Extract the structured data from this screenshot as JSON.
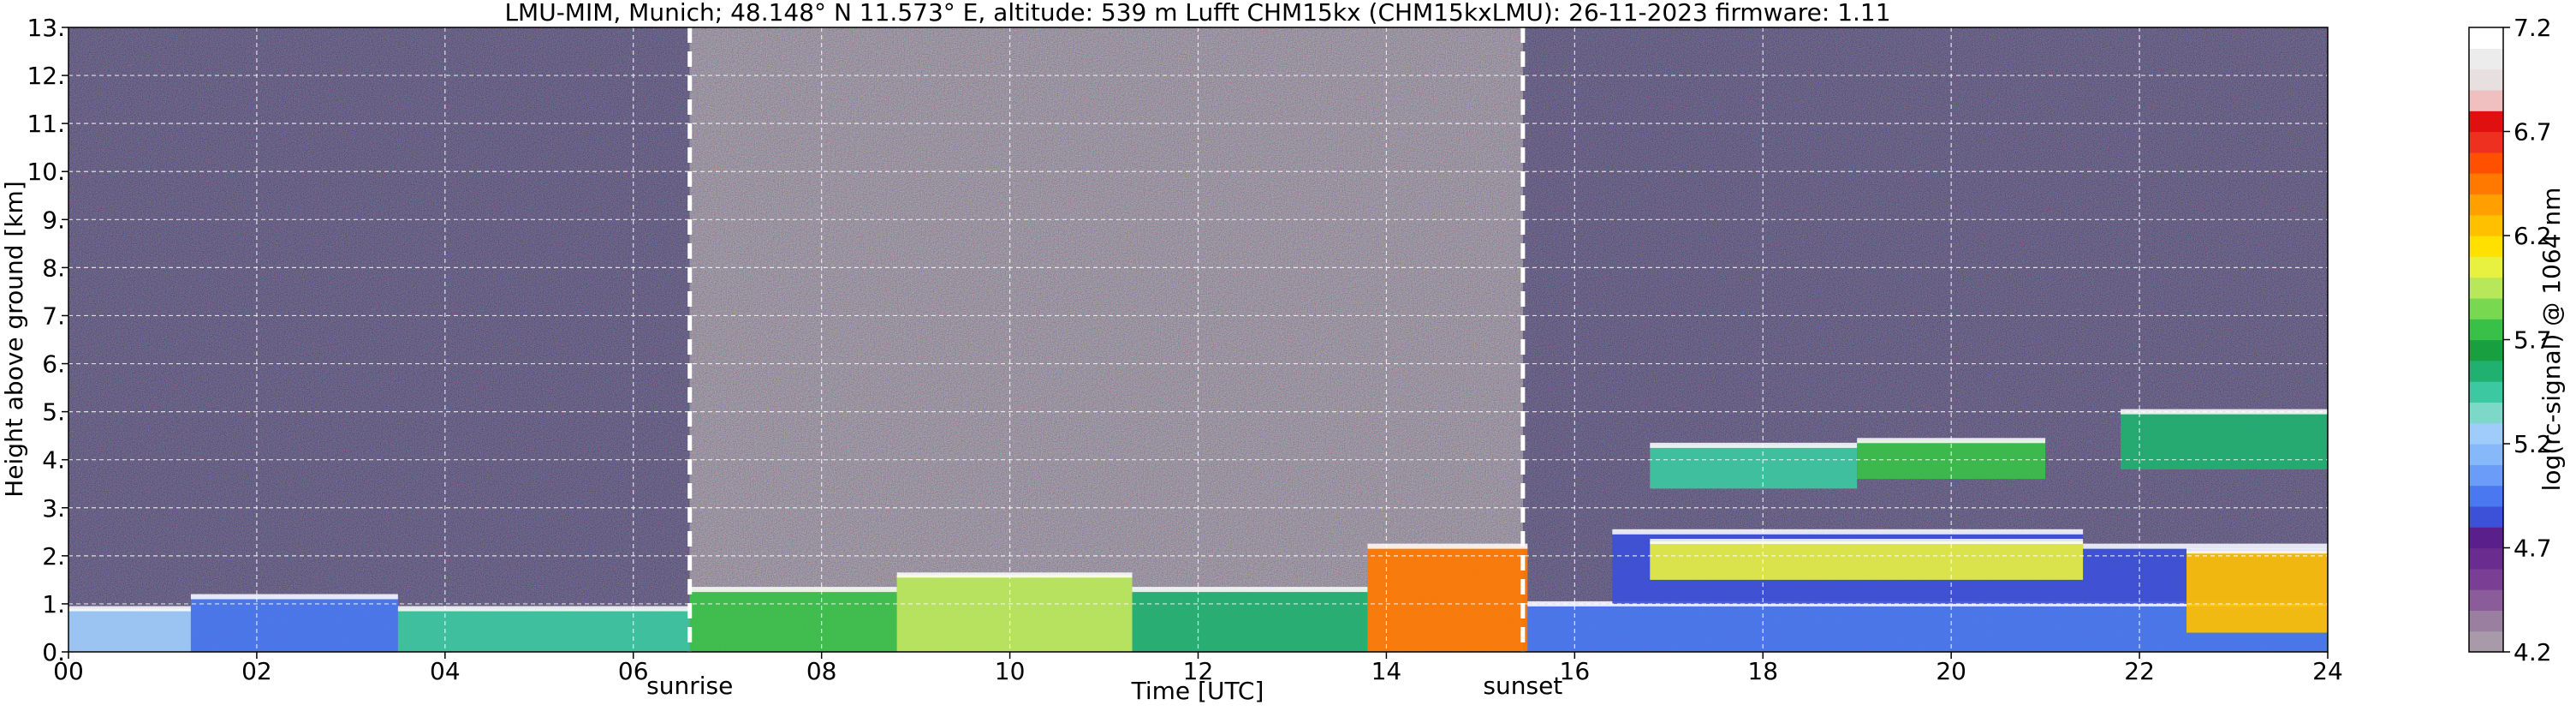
{
  "chart_data": {
    "type": "heatmap",
    "title": "LMU-MIM, Munich; 48.148° N 11.573° E, altitude: 539 m    Lufft CHM15kx (CHM15kxLMU): 26-11-2023    firmware: 1.11",
    "xlabel": "Time [UTC]",
    "ylabel": "Height above ground [km]",
    "xlim": [
      0,
      24
    ],
    "ylim": [
      0,
      13
    ],
    "x_ticks": [
      "00",
      "02",
      "04",
      "06",
      "08",
      "10",
      "12",
      "14",
      "16",
      "18",
      "20",
      "22",
      "24"
    ],
    "x_tick_values": [
      0,
      2,
      4,
      6,
      8,
      10,
      12,
      14,
      16,
      18,
      20,
      22,
      24
    ],
    "y_ticks": [
      "0.",
      "1.",
      "2.",
      "3.",
      "4.",
      "5.",
      "6.",
      "7.",
      "8.",
      "9.",
      "10.",
      "11.",
      "12.",
      "13."
    ],
    "y_tick_values": [
      0,
      1,
      2,
      3,
      4,
      5,
      6,
      7,
      8,
      9,
      10,
      11,
      12,
      13
    ],
    "grid": true,
    "markers": [
      {
        "label": "sunrise",
        "x": 6.6
      },
      {
        "label": "sunset",
        "x": 15.45
      }
    ],
    "colorbar": {
      "label": "log(rc-signal) @ 1064 nm",
      "range": [
        4.2,
        7.2
      ],
      "tick_labels": [
        "4.2",
        "4.7",
        "5.2",
        "5.7",
        "6.2",
        "6.7",
        "7.2"
      ],
      "tick_values": [
        4.2,
        4.7,
        5.2,
        5.7,
        6.2,
        6.7,
        7.2
      ],
      "colors": [
        "#a89aa8",
        "#9b7fa0",
        "#8a5c9a",
        "#7a3e94",
        "#6a2c8f",
        "#5a1f8a",
        "#3c50d8",
        "#4a78f0",
        "#6a9cf8",
        "#86b8fa",
        "#a0ccfb",
        "#7ed8c8",
        "#3cc8a0",
        "#20b070",
        "#18a040",
        "#38c048",
        "#78d850",
        "#b8e85a",
        "#e8f040",
        "#ffe000",
        "#ffc000",
        "#ffa000",
        "#ff7800",
        "#ff5000",
        "#ee3020",
        "#e01010",
        "#f0c0c0",
        "#e8e0e0",
        "#ececec",
        "#ffffff"
      ]
    },
    "clouds": [
      {
        "x0": 0.0,
        "x1": 1.3,
        "y0": 0.0,
        "y1": 0.9,
        "level": 5.2
      },
      {
        "x0": 1.3,
        "x1": 3.5,
        "y0": 0.0,
        "y1": 1.15,
        "level": 5.0
      },
      {
        "x0": 3.5,
        "x1": 6.6,
        "y0": 0.0,
        "y1": 0.9,
        "level": 5.5
      },
      {
        "x0": 6.6,
        "x1": 8.8,
        "y0": 0.0,
        "y1": 1.3,
        "level": 5.8
      },
      {
        "x0": 8.8,
        "x1": 11.3,
        "y0": 0.0,
        "y1": 1.6,
        "level": 5.9
      },
      {
        "x0": 11.3,
        "x1": 13.8,
        "y0": 0.0,
        "y1": 1.3,
        "level": 5.6
      },
      {
        "x0": 13.8,
        "x1": 15.5,
        "y0": 0.0,
        "y1": 2.2,
        "level": 6.4
      },
      {
        "x0": 15.5,
        "x1": 24.0,
        "y0": 0.0,
        "y1": 1.0,
        "level": 4.9
      },
      {
        "x0": 16.4,
        "x1": 21.4,
        "y0": 1.0,
        "y1": 2.5,
        "level": 4.85
      },
      {
        "x0": 21.4,
        "x1": 24.0,
        "y0": 1.0,
        "y1": 2.2,
        "level": 4.85
      },
      {
        "x0": 16.8,
        "x1": 21.4,
        "y0": 1.5,
        "y1": 2.3,
        "level": 6.0
      },
      {
        "x0": 22.5,
        "x1": 24.0,
        "y0": 0.4,
        "y1": 2.1,
        "level": 6.2
      },
      {
        "x0": 16.8,
        "x1": 19.0,
        "y0": 3.4,
        "y1": 4.3,
        "level": 5.5
      },
      {
        "x0": 19.0,
        "x1": 21.0,
        "y0": 3.6,
        "y1": 4.4,
        "level": 5.8
      },
      {
        "x0": 21.8,
        "x1": 24.0,
        "y0": 3.8,
        "y1": 5.0,
        "level": 5.6
      }
    ]
  }
}
